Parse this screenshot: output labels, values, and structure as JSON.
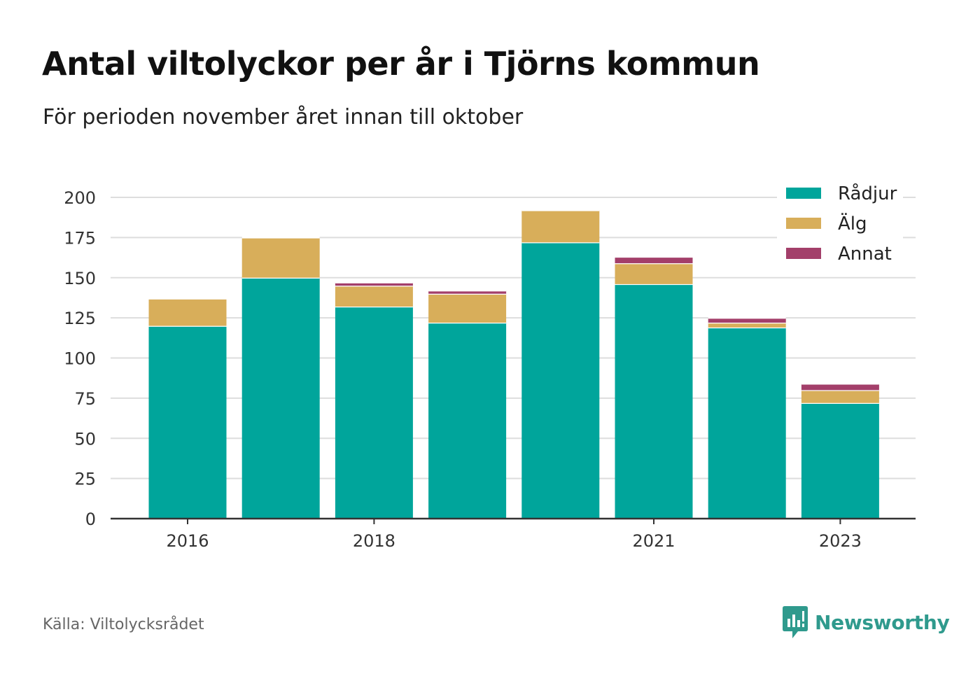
{
  "title": "Antal viltolyckor per år i Tjörns kommun",
  "subtitle": "För perioden november året innan till oktober",
  "source": "Källa: Viltolycksrådet",
  "brand": {
    "name": "Newsworthy",
    "logo_icon": "bar-chart-speech-bubble-icon",
    "color": "#2f9a8d"
  },
  "chart_data": {
    "type": "bar",
    "stacked": true,
    "categories": [
      "2016",
      "2017",
      "2018",
      "2019",
      "2020",
      "2021",
      "2022",
      "2023"
    ],
    "x_tick_labels": [
      "2016",
      "",
      "2018",
      "",
      "",
      "2021",
      "",
      "2023"
    ],
    "series": [
      {
        "name": "Rådjur",
        "color": "#00a59b",
        "values": [
          120,
          150,
          132,
          122,
          172,
          146,
          119,
          72
        ]
      },
      {
        "name": "Älg",
        "color": "#d8ae5a",
        "values": [
          17,
          25,
          13,
          18,
          20,
          13,
          3,
          8
        ]
      },
      {
        "name": "Annat",
        "color": "#a33f6a",
        "values": [
          0,
          0,
          2,
          2,
          0,
          4,
          3,
          4
        ]
      }
    ],
    "ylim": [
      0,
      200
    ],
    "yticks": [
      0,
      25,
      50,
      75,
      100,
      125,
      150,
      175,
      200
    ],
    "xlabel": "",
    "ylabel": "",
    "grid": true,
    "legend_position": "top-right"
  }
}
